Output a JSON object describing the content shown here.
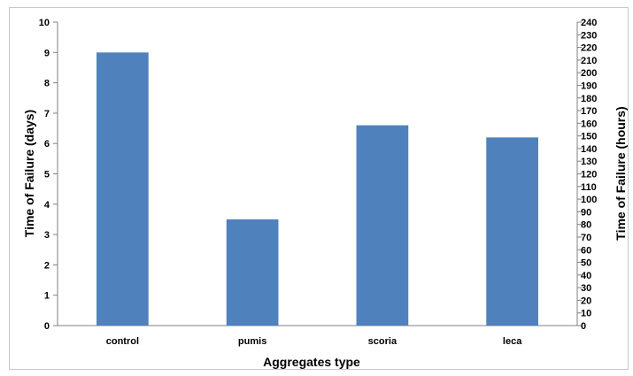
{
  "chart_data": {
    "type": "bar",
    "categories": [
      "control",
      "pumis",
      "scoria",
      "leca"
    ],
    "values": [
      9,
      3.5,
      6.6,
      6.2
    ],
    "xlabel": "Aggregates type",
    "ylabel": "Time of Failure (days)",
    "y2label": "Time of Failure  (hours)",
    "ylim": [
      0,
      10
    ],
    "y2lim": [
      0,
      240
    ],
    "yticks": [
      "0",
      "1",
      "2",
      "3",
      "4",
      "5",
      "6",
      "7",
      "8",
      "9",
      "10"
    ],
    "y2ticks": [
      "0",
      "10",
      "20",
      "30",
      "40",
      "50",
      "60",
      "70",
      "80",
      "90",
      "100",
      "110",
      "120",
      "130",
      "140",
      "150",
      "160",
      "170",
      "180",
      "190",
      "200",
      "210",
      "220",
      "230",
      "240"
    ],
    "bar_color": "#4f81bd",
    "grid": false,
    "legend": "none"
  }
}
